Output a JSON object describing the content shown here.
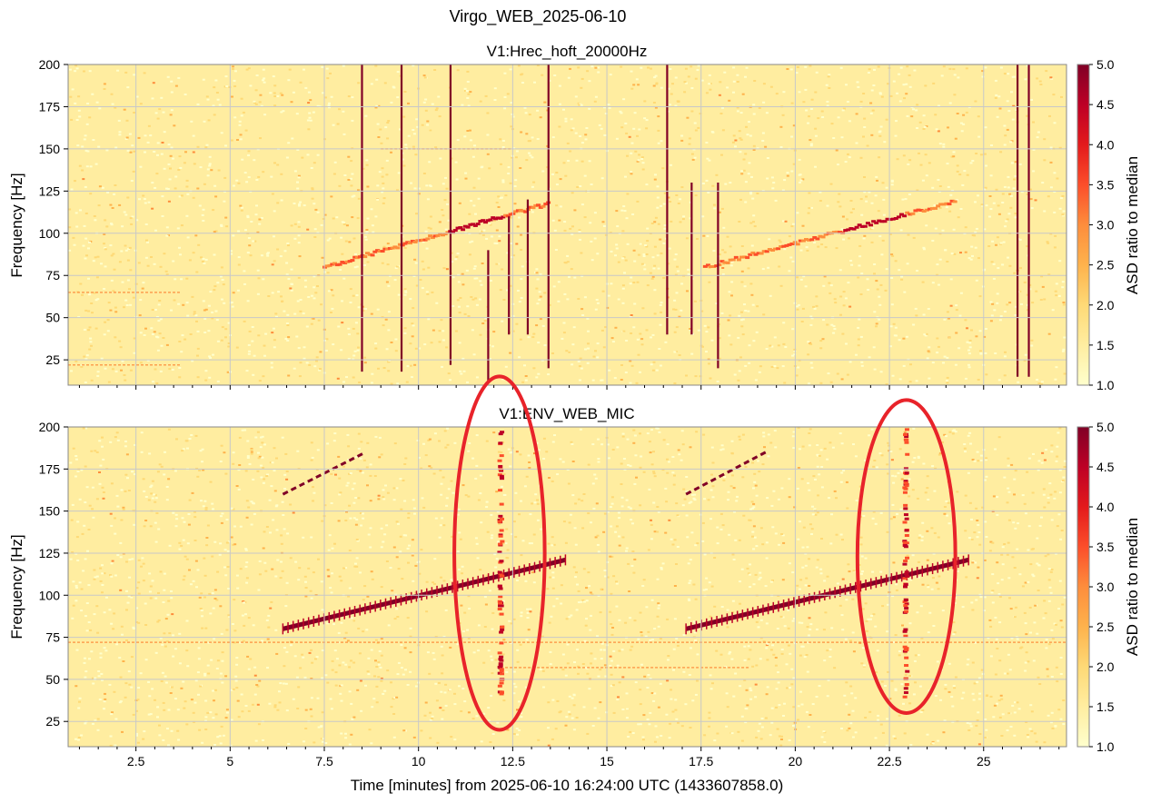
{
  "figure": {
    "suptitle": "Virgo_WEB_2025-06-10",
    "xlabel": "Time [minutes] from 2025-06-10 16:24:00 UTC (1433607858.0)"
  },
  "colors": {
    "colormap": [
      "#ffffcc",
      "#ffeda0",
      "#fed976",
      "#feb24c",
      "#fd8d3c",
      "#fc4e2a",
      "#e31a1c",
      "#bd0026",
      "#800026"
    ],
    "annotation": "#e8232a",
    "grid": "#c8c8c8"
  },
  "chart_data": [
    {
      "type": "heatmap",
      "title": "V1:Hrec_hoft_20000Hz",
      "xlabel": "",
      "ylabel": "Frequency [Hz]",
      "xlim": [
        0.7,
        27.2
      ],
      "ylim": [
        10,
        200
      ],
      "xticks": [
        2.5,
        5,
        7.5,
        10,
        12.5,
        15,
        17.5,
        20,
        22.5,
        25
      ],
      "xtick_labels_visible": false,
      "yticks": [
        25,
        50,
        75,
        100,
        125,
        150,
        175,
        200
      ],
      "grid": true,
      "colorbar": {
        "label": "ASD ratio to median",
        "range": [
          1.0,
          5.0
        ],
        "ticks": [
          "1.0",
          "1.5",
          "2.0",
          "2.5",
          "3.0",
          "3.5",
          "4.0",
          "4.5",
          "5.0"
        ]
      },
      "features": {
        "vertical_glitches": [
          {
            "t": 8.5,
            "fmin": 18,
            "fmax": 200
          },
          {
            "t": 9.55,
            "fmin": 18,
            "fmax": 200
          },
          {
            "t": 10.85,
            "fmin": 22,
            "fmax": 200
          },
          {
            "t": 11.85,
            "fmin": 12,
            "fmax": 90
          },
          {
            "t": 12.4,
            "fmin": 40,
            "fmax": 110
          },
          {
            "t": 12.9,
            "fmin": 40,
            "fmax": 120
          },
          {
            "t": 13.45,
            "fmin": 20,
            "fmax": 200
          },
          {
            "t": 16.6,
            "fmin": 40,
            "fmax": 200
          },
          {
            "t": 17.25,
            "fmin": 40,
            "fmax": 130
          },
          {
            "t": 17.95,
            "fmin": 20,
            "fmax": 130
          },
          {
            "t": 25.9,
            "fmin": 15,
            "fmax": 200
          },
          {
            "t": 26.2,
            "fmin": 15,
            "fmax": 200
          }
        ],
        "chirps": [
          {
            "t0": 7.5,
            "f0": 80,
            "t1": 13.5,
            "f1": 118
          },
          {
            "t0": 17.6,
            "f0": 80,
            "t1": 24.3,
            "f1": 119
          }
        ],
        "horizontal_lines": [
          {
            "f": 65,
            "t0": 0.7,
            "t1": 3.7
          },
          {
            "f": 22,
            "t0": 0.7,
            "t1": 3.7
          },
          {
            "f": 150,
            "t0": 9.0,
            "t1": 12.5
          }
        ]
      }
    },
    {
      "type": "heatmap",
      "title": "V1:ENV_WEB_MIC",
      "xlabel": "Time [minutes] from 2025-06-10 16:24:00 UTC (1433607858.0)",
      "ylabel": "Frequency [Hz]",
      "xlim": [
        0.7,
        27.2
      ],
      "ylim": [
        10,
        200
      ],
      "xticks": [
        2.5,
        5,
        7.5,
        10,
        12.5,
        15,
        17.5,
        20,
        22.5,
        25
      ],
      "xtick_labels": [
        "2.5",
        "5",
        "7.5",
        "10",
        "12.5",
        "15",
        "17.5",
        "20",
        "22.5",
        "25"
      ],
      "yticks": [
        25,
        50,
        75,
        100,
        125,
        150,
        175,
        200
      ],
      "grid": true,
      "colorbar": {
        "label": "ASD ratio to median",
        "range": [
          1.0,
          5.0
        ],
        "ticks": [
          "1.0",
          "1.5",
          "2.0",
          "2.5",
          "3.0",
          "3.5",
          "4.0",
          "4.5",
          "5.0"
        ]
      },
      "features": {
        "chirps": [
          {
            "t0": 6.4,
            "f0": 80,
            "t1": 13.9,
            "f1": 121
          },
          {
            "t0": 17.1,
            "f0": 80,
            "t1": 24.6,
            "f1": 121
          }
        ],
        "harmonic_chirps": [
          {
            "t0": 6.4,
            "f0": 160,
            "t1": 8.6,
            "f1": 185
          },
          {
            "t0": 17.1,
            "f0": 160,
            "t1": 19.3,
            "f1": 186
          }
        ],
        "vertical_glitches": [
          {
            "t": 12.2,
            "fmin": 40,
            "fmax": 200
          },
          {
            "t": 22.95,
            "fmin": 40,
            "fmax": 200
          }
        ],
        "horizontal_lines": [
          {
            "f": 57,
            "t0": 12.3,
            "t1": 18.8
          },
          {
            "f": 72,
            "t0": 0.7,
            "t1": 27.2
          }
        ],
        "annotations": [
          {
            "shape": "ellipse",
            "t": 12.15,
            "f": 125,
            "half_width_minutes": 1.2,
            "half_height_hz": 105
          },
          {
            "shape": "ellipse",
            "t": 22.95,
            "f": 123,
            "half_width_minutes": 1.3,
            "half_height_hz": 93
          }
        ]
      }
    }
  ]
}
